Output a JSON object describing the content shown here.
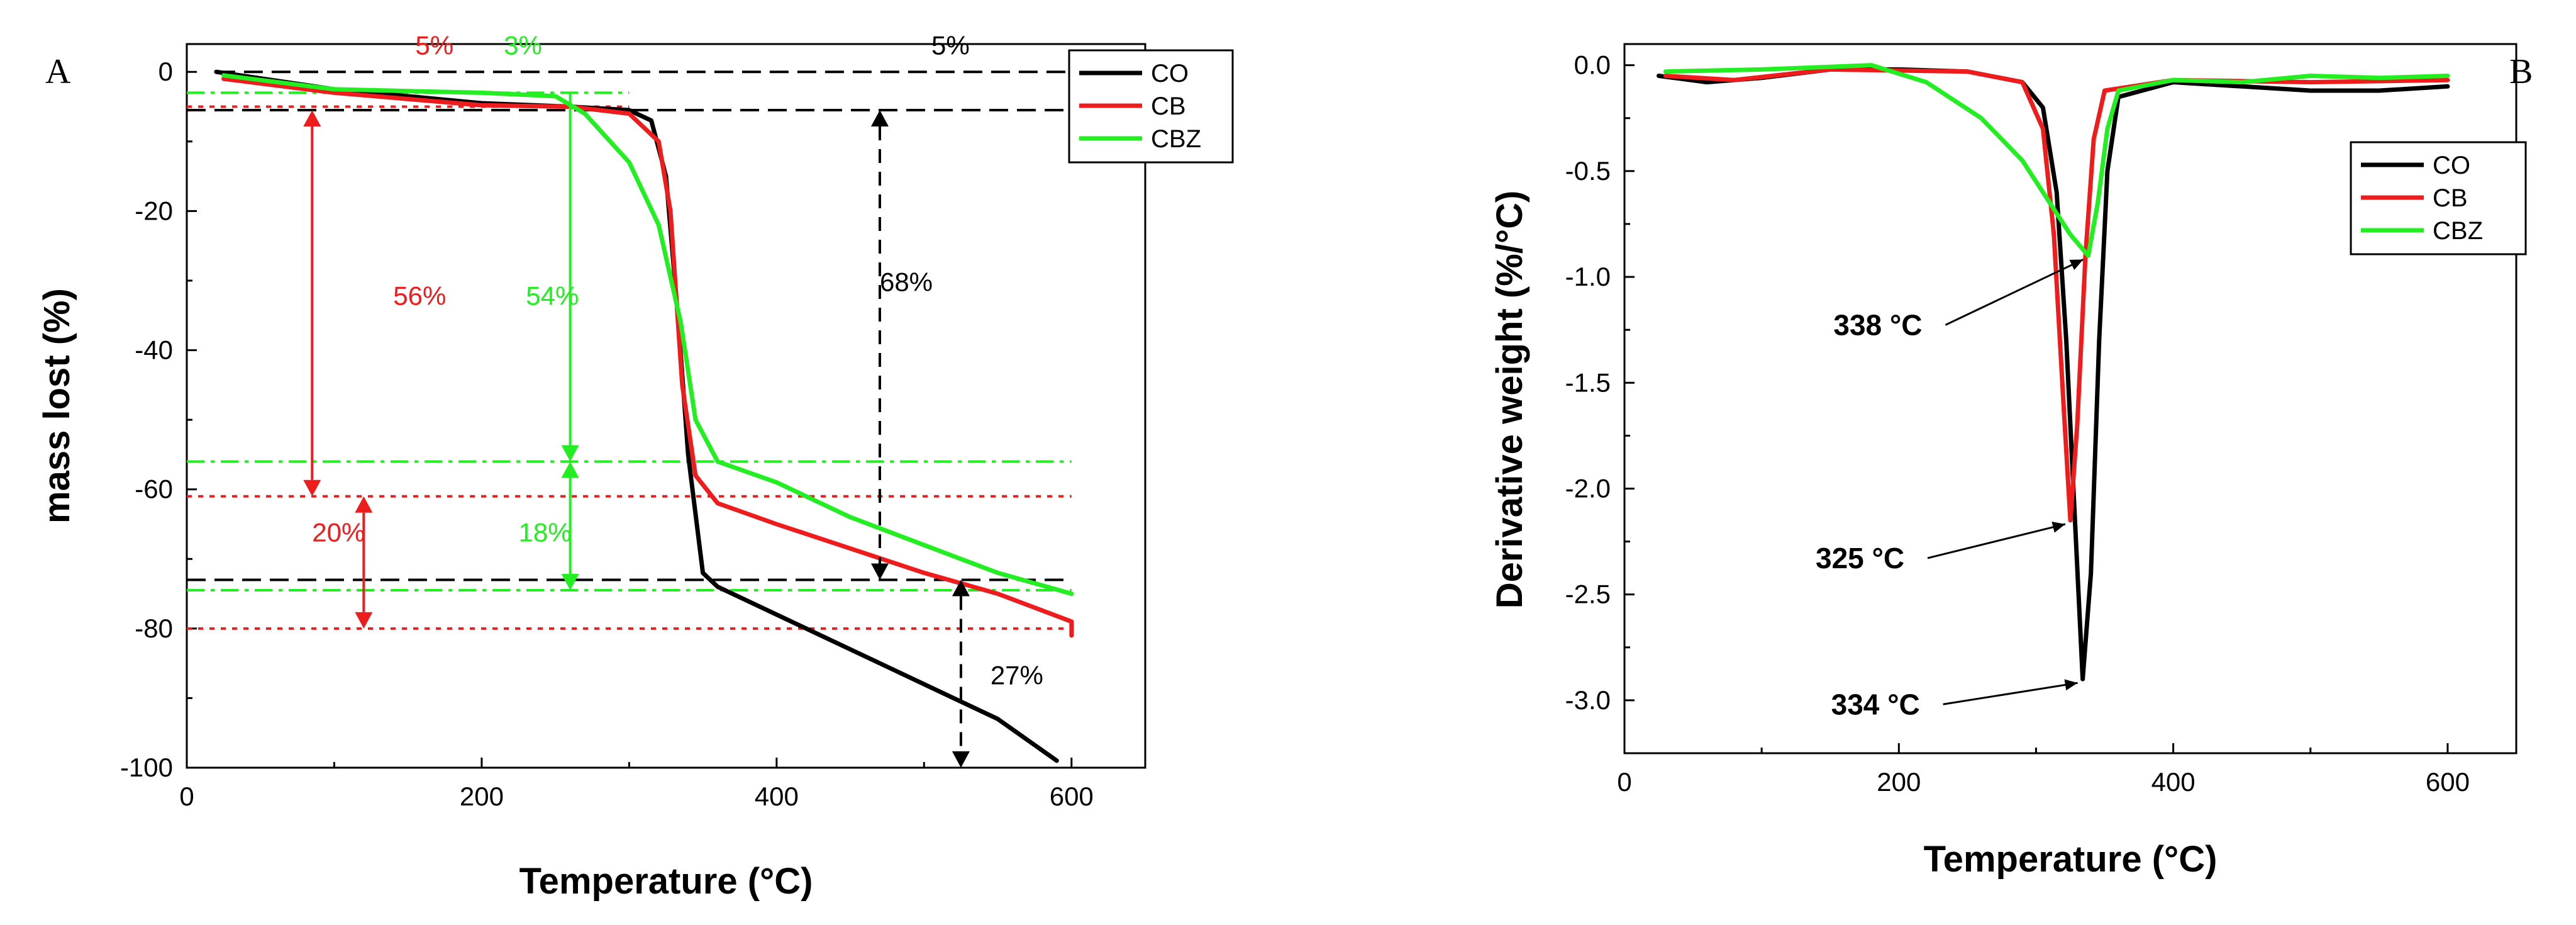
{
  "chart_data": [
    {
      "panel": "A",
      "type": "line",
      "xlabel": "Temperature (°C)",
      "ylabel": "mass lost (%)",
      "xlim": [
        0,
        650
      ],
      "ylim": [
        -100,
        4
      ],
      "xticks": [
        0,
        200,
        400,
        600
      ],
      "yticks": [
        0,
        -20,
        -40,
        -60,
        -80,
        -100
      ],
      "legend": {
        "position": "top-right",
        "entries": [
          "CO",
          "CB",
          "CBZ"
        ]
      },
      "colors": {
        "CO": "#000000",
        "CB": "#ee1c1c",
        "CBZ": "#22ee22"
      },
      "series": [
        {
          "name": "CO",
          "points": [
            [
              20,
              0
            ],
            [
              100,
              -2.5
            ],
            [
              200,
              -4.5
            ],
            [
              260,
              -5
            ],
            [
              300,
              -5.5
            ],
            [
              315,
              -7
            ],
            [
              325,
              -15
            ],
            [
              333,
              -35
            ],
            [
              340,
              -55
            ],
            [
              350,
              -72
            ],
            [
              360,
              -74
            ],
            [
              400,
              -78
            ],
            [
              450,
              -83
            ],
            [
              500,
              -88
            ],
            [
              550,
              -93
            ],
            [
              590,
              -99
            ]
          ]
        },
        {
          "name": "CB",
          "points": [
            [
              25,
              -1
            ],
            [
              100,
              -3
            ],
            [
              200,
              -4.8
            ],
            [
              260,
              -5
            ],
            [
              300,
              -6
            ],
            [
              320,
              -10
            ],
            [
              328,
              -20
            ],
            [
              336,
              -45
            ],
            [
              345,
              -58
            ],
            [
              360,
              -62
            ],
            [
              400,
              -65
            ],
            [
              450,
              -68.5
            ],
            [
              500,
              -72
            ],
            [
              550,
              -75
            ],
            [
              600,
              -79
            ],
            [
              600,
              -81
            ]
          ]
        },
        {
          "name": "CBZ",
          "points": [
            [
              25,
              -0.5
            ],
            [
              100,
              -2.5
            ],
            [
              200,
              -3
            ],
            [
              250,
              -3.5
            ],
            [
              270,
              -6
            ],
            [
              300,
              -13
            ],
            [
              320,
              -22
            ],
            [
              335,
              -36
            ],
            [
              345,
              -50
            ],
            [
              360,
              -56
            ],
            [
              400,
              -59
            ],
            [
              450,
              -64
            ],
            [
              500,
              -68
            ],
            [
              550,
              -72
            ],
            [
              600,
              -75
            ]
          ]
        }
      ],
      "reference_lines": [
        {
          "style": "black dashed",
          "y": 0,
          "x": [
            20,
            600
          ]
        },
        {
          "style": "black dashed",
          "y": -5.5,
          "x": [
            0,
            600
          ]
        },
        {
          "style": "black dashed",
          "y": -73,
          "x": [
            0,
            600
          ]
        },
        {
          "style": "red dotted",
          "y": -5,
          "x": [
            0,
            300
          ]
        },
        {
          "style": "red dotted",
          "y": -61,
          "x": [
            0,
            600
          ]
        },
        {
          "style": "red dotted",
          "y": -80,
          "x": [
            0,
            600
          ]
        },
        {
          "style": "green dash-dot",
          "y": -3,
          "x": [
            0,
            300
          ]
        },
        {
          "style": "green dash-dot",
          "y": -56,
          "x": [
            0,
            600
          ]
        },
        {
          "style": "green dash-dot",
          "y": -74.5,
          "x": [
            0,
            600
          ]
        }
      ],
      "annotations": [
        {
          "text": "5%",
          "color": "red"
        },
        {
          "text": "3%",
          "color": "green"
        },
        {
          "text": "5%",
          "color": "black"
        },
        {
          "text": "56%",
          "color": "red"
        },
        {
          "text": "54%",
          "color": "green"
        },
        {
          "text": "68%",
          "color": "black"
        },
        {
          "text": "20%",
          "color": "red"
        },
        {
          "text": "18%",
          "color": "green"
        },
        {
          "text": "27%",
          "color": "black"
        }
      ]
    },
    {
      "panel": "B",
      "type": "line",
      "xlabel": "Temperature (°C)",
      "ylabel": "Derivative weight (%/°C)",
      "xlim": [
        0,
        650
      ],
      "ylim": [
        -3.25,
        0.1
      ],
      "xticks": [
        0,
        200,
        400,
        600
      ],
      "yticks": [
        0.0,
        -0.5,
        -1.0,
        -1.5,
        -2.0,
        -2.5,
        -3.0
      ],
      "legend": {
        "position": "top-right",
        "entries": [
          "CO",
          "CB",
          "CBZ"
        ]
      },
      "colors": {
        "CO": "#000000",
        "CB": "#ee1c1c",
        "CBZ": "#22ee22"
      },
      "series": [
        {
          "name": "CO",
          "points": [
            [
              25,
              -0.05
            ],
            [
              60,
              -0.08
            ],
            [
              100,
              -0.06
            ],
            [
              150,
              -0.02
            ],
            [
              200,
              -0.02
            ],
            [
              250,
              -0.03
            ],
            [
              290,
              -0.08
            ],
            [
              305,
              -0.2
            ],
            [
              315,
              -0.6
            ],
            [
              322,
              -1.3
            ],
            [
              328,
              -2.1
            ],
            [
              334,
              -2.9
            ],
            [
              340,
              -2.4
            ],
            [
              346,
              -1.3
            ],
            [
              352,
              -0.5
            ],
            [
              360,
              -0.15
            ],
            [
              400,
              -0.08
            ],
            [
              450,
              -0.1
            ],
            [
              500,
              -0.12
            ],
            [
              550,
              -0.12
            ],
            [
              600,
              -0.1
            ]
          ]
        },
        {
          "name": "CB",
          "points": [
            [
              30,
              -0.05
            ],
            [
              80,
              -0.07
            ],
            [
              150,
              -0.02
            ],
            [
              250,
              -0.03
            ],
            [
              290,
              -0.08
            ],
            [
              305,
              -0.3
            ],
            [
              313,
              -0.8
            ],
            [
              320,
              -1.6
            ],
            [
              325,
              -2.15
            ],
            [
              330,
              -1.7
            ],
            [
              336,
              -0.9
            ],
            [
              342,
              -0.35
            ],
            [
              350,
              -0.12
            ],
            [
              400,
              -0.07
            ],
            [
              500,
              -0.08
            ],
            [
              600,
              -0.07
            ]
          ]
        },
        {
          "name": "CBZ",
          "points": [
            [
              30,
              -0.03
            ],
            [
              100,
              -0.02
            ],
            [
              180,
              0.0
            ],
            [
              220,
              -0.08
            ],
            [
              260,
              -0.25
            ],
            [
              290,
              -0.45
            ],
            [
              310,
              -0.65
            ],
            [
              325,
              -0.8
            ],
            [
              338,
              -0.9
            ],
            [
              345,
              -0.65
            ],
            [
              352,
              -0.3
            ],
            [
              360,
              -0.12
            ],
            [
              400,
              -0.07
            ],
            [
              450,
              -0.08
            ],
            [
              500,
              -0.05
            ],
            [
              550,
              -0.06
            ],
            [
              600,
              -0.05
            ]
          ]
        }
      ],
      "peak_labels": [
        {
          "text": "338 °C",
          "x": 338,
          "y": -0.9
        },
        {
          "text": "325 °C",
          "x": 325,
          "y": -2.15
        },
        {
          "text": "334 °C",
          "x": 334,
          "y": -2.9
        }
      ]
    }
  ],
  "panel_labels": {
    "a": "A",
    "b": "B"
  },
  "axis_titles": {
    "a_x": "Temperature (°C)",
    "a_y": "mass lost (%)",
    "b_x": "Temperature (°C)",
    "b_y": "Derivative weight (%/°C)"
  }
}
